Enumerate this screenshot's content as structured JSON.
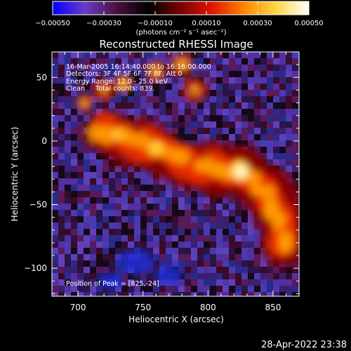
{
  "chart_data": {
    "type": "heatmap",
    "title": "Reconstructed RHESSI Image",
    "xlabel": "Heliocentric X (arcsec)",
    "ylabel": "Heliocentric Y (arcsec)",
    "xlim": [
      680,
      870
    ],
    "ylim": [
      -122,
      70
    ],
    "x_ticks": [
      700,
      750,
      800,
      850
    ],
    "y_ticks": [
      50,
      0,
      -50,
      -100
    ],
    "x_tick_labels": [
      "700",
      "750",
      "800",
      "850"
    ],
    "y_tick_labels": [
      "50",
      "0",
      "−50",
      "−100"
    ],
    "colorbar": {
      "range": [
        -0.0005,
        0.0005
      ],
      "ticks": [
        -0.0005,
        -0.0003,
        -0.0001,
        0.0001,
        0.0003,
        0.0005
      ],
      "tick_labels": [
        "−0.00050",
        "−0.00030",
        "−0.00010",
        "0.00010",
        "0.00030",
        "0.00050"
      ],
      "unit_label": "(photons cm⁻² s⁻¹ asec⁻²)",
      "colors": [
        "#0000ff",
        "#6a3cc8",
        "#4a1040",
        "#000000",
        "#7a0000",
        "#e21800",
        "#ff8800",
        "#ffd84a",
        "#ffffff"
      ]
    },
    "annotations": [
      "16-Mar-2005 16:14:40.000 to 16:16:00.000",
      "Detectors: 3F 4F 5F 6F 7F 8F, Att 0",
      "Energy Range: 12.0 - 25.0 keV",
      "Clean     Total counts: 839.",
      "Position of Peak = [825,-24]"
    ],
    "peak": {
      "x": 825,
      "y": -24
    },
    "source_arc": [
      {
        "x": 715,
        "y": 10
      },
      {
        "x": 740,
        "y": 0
      },
      {
        "x": 765,
        "y": -8
      },
      {
        "x": 790,
        "y": -20
      },
      {
        "x": 812,
        "y": -22
      },
      {
        "x": 825,
        "y": -24
      },
      {
        "x": 845,
        "y": -40
      },
      {
        "x": 855,
        "y": -60
      },
      {
        "x": 858,
        "y": -80
      }
    ]
  },
  "footer": {
    "timestamp": "28-Apr-2022 23:38"
  }
}
